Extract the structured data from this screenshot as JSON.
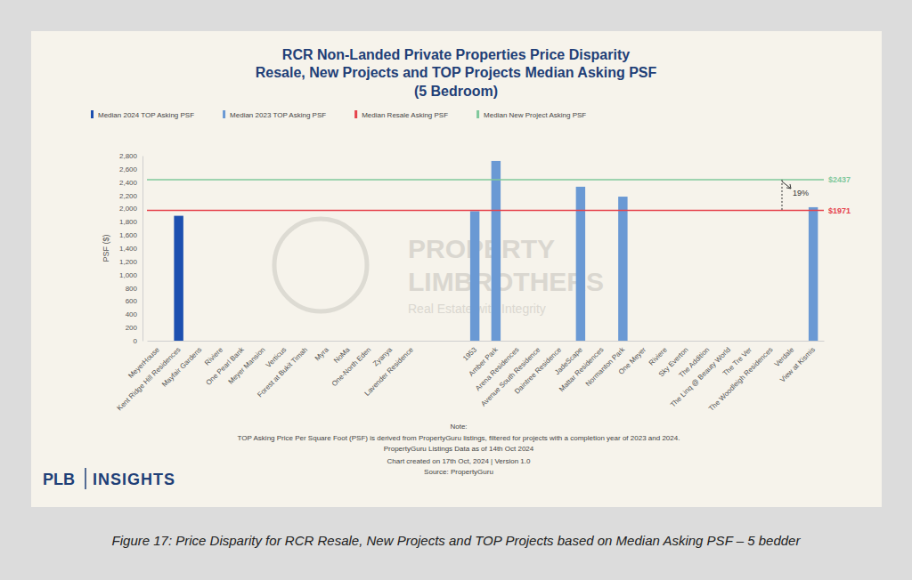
{
  "chart_data": {
    "type": "bar",
    "title": [
      "RCR Non-Landed Private Properties Price Disparity",
      "Resale, New Projects and TOP Projects Median Asking PSF",
      "(5 Bedroom)"
    ],
    "y_label": "PSF ($)",
    "categories": [
      "MeyerHouse",
      "Kent Ridge Hill Residences",
      "Mayfair Gardens",
      "Riviere",
      "One Pearl Bank",
      "Meyer Mansion",
      "Verticus",
      "Forest at Bukit Timah",
      "Myra",
      "NoMa",
      "One-North Eden",
      "Zyanya",
      "Lavender Residence",
      null,
      null,
      "1953",
      "Amber Park",
      "Arena Residences",
      "Avenue South Residence",
      "Daintree Residence",
      "JadeScape",
      "Mattar Residences",
      "Normanton Park",
      "One Meyer",
      "Riviere",
      "Sky Everton",
      "The Addition",
      "The Linq @ Beauty World",
      "The Tre Ver",
      "The Woodleigh Residences",
      "Verdale",
      "View at Kismis"
    ],
    "series": [
      {
        "name": "Median 2024 TOP Asking PSF",
        "color": "#1c4fb0",
        "values": [
          null,
          1890,
          null,
          null,
          null,
          null,
          null,
          null,
          null,
          null,
          null,
          null,
          null,
          null,
          null,
          null,
          null,
          null,
          null,
          null,
          null,
          null,
          null,
          null,
          null,
          null,
          null,
          null,
          null,
          null,
          null,
          null
        ]
      },
      {
        "name": "Median 2023 TOP Asking PSF",
        "color": "#6a99d4",
        "values": [
          null,
          null,
          null,
          null,
          null,
          null,
          null,
          null,
          null,
          null,
          null,
          null,
          null,
          null,
          null,
          1960,
          2720,
          null,
          null,
          null,
          2330,
          null,
          2180,
          null,
          null,
          null,
          null,
          null,
          null,
          null,
          null,
          2020
        ]
      }
    ],
    "reference_lines": [
      {
        "name": "Median Resale Asking PSF",
        "value": 1971,
        "label": "$1971",
        "color": "#e5424b"
      },
      {
        "name": "Median New Project Asking PSF",
        "value": 2437,
        "label": "$2437",
        "color": "#7fc89b"
      }
    ],
    "annotation": "19%",
    "ylim": [
      0,
      2800
    ],
    "yticks": [
      0,
      200,
      400,
      600,
      800,
      {
        "value": 1000,
        "label": "1,000"
      },
      {
        "value": 1200,
        "label": "1,200"
      },
      {
        "value": 1400,
        "label": "1,400"
      },
      {
        "value": 1600,
        "label": "1,600"
      },
      {
        "value": 1800,
        "label": "1,800"
      },
      {
        "value": 2000,
        "label": "2,000"
      },
      {
        "value": 2200,
        "label": "2,200"
      },
      {
        "value": 2400,
        "label": "2,400"
      },
      {
        "value": 2600,
        "label": "2,600"
      },
      {
        "value": 2800,
        "label": "2,800"
      }
    ],
    "grid": false,
    "legend": "top",
    "notes": [
      "Note:",
      "TOP Asking Price Per Square Foot (PSF) is derived from PropertyGuru listings, filtered for projects with a completion year of 2023 and 2024.",
      "PropertyGuru Listings Data as of 14th Oct 2024",
      "Chart created on 17th Oct, 2024 | Version 1.0",
      "Source: PropertyGuru"
    ]
  },
  "watermark": [
    "PROPERTY",
    "LIMBROTHERS",
    "Real Estate with Integrity"
  ],
  "logo": [
    "PLB",
    "INSIGHTS"
  ],
  "caption": "Figure 17: Price Disparity for RCR Resale, New Projects and TOP Projects based on Median Asking PSF – 5 bedder"
}
